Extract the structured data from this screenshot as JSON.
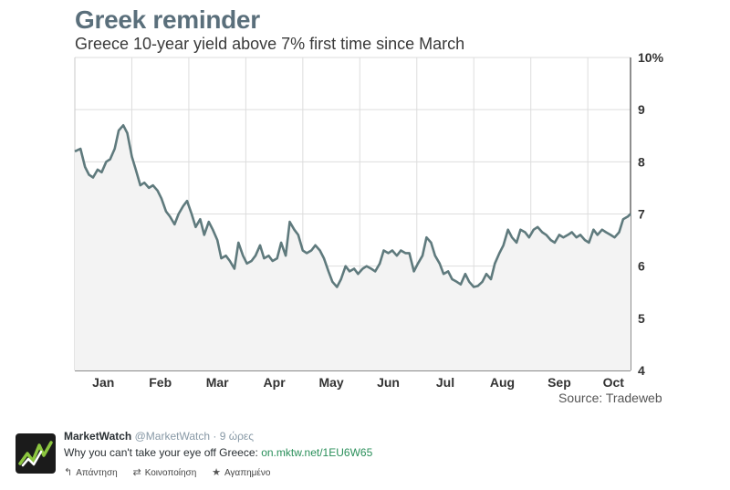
{
  "chart": {
    "title": "Greek reminder",
    "subtitle": "Greece 10-year yield above 7% first time since March",
    "source": "Source: Tradeweb"
  },
  "chart_data": {
    "type": "area",
    "title": "Greek reminder",
    "subtitle": "Greece 10-year yield above 7% first time since March",
    "ylim": [
      4,
      10
    ],
    "y_ticks": [
      "4",
      "5",
      "6",
      "7",
      "8",
      "9",
      "10%"
    ],
    "x_ticks": [
      "Jan",
      "Feb",
      "Mar",
      "Apr",
      "May",
      "Jun",
      "Jul",
      "Aug",
      "Sep",
      "Oct"
    ],
    "x_range_months": [
      0,
      9.75
    ],
    "grid": true,
    "series": [
      {
        "x": [
          0.0,
          0.1,
          0.18,
          0.25,
          0.32,
          0.4,
          0.47,
          0.55,
          0.62,
          0.7,
          0.77,
          0.85,
          0.92,
          1.0,
          1.07,
          1.15,
          1.22,
          1.3,
          1.37,
          1.45,
          1.52,
          1.6,
          1.67,
          1.75,
          1.82,
          1.9,
          1.97,
          2.05,
          2.12,
          2.2,
          2.27,
          2.35,
          2.42,
          2.5,
          2.57,
          2.65,
          2.72,
          2.8,
          2.87,
          2.95,
          3.02,
          3.1,
          3.17,
          3.25,
          3.32,
          3.4,
          3.47,
          3.55,
          3.62,
          3.7,
          3.77,
          3.85,
          3.92,
          4.0,
          4.07,
          4.15,
          4.22,
          4.3,
          4.37,
          4.45,
          4.52,
          4.6,
          4.67,
          4.75,
          4.82,
          4.9,
          4.97,
          5.05,
          5.12,
          5.2,
          5.27,
          5.35,
          5.42,
          5.5,
          5.57,
          5.65,
          5.72,
          5.8,
          5.87,
          5.95,
          6.02,
          6.1,
          6.17,
          6.25,
          6.32,
          6.4,
          6.47,
          6.55,
          6.62,
          6.7,
          6.77,
          6.85,
          6.92,
          7.0,
          7.07,
          7.15,
          7.22,
          7.3,
          7.37,
          7.45,
          7.52,
          7.6,
          7.67,
          7.75,
          7.82,
          7.9,
          7.97,
          8.05,
          8.12,
          8.2,
          8.27,
          8.35,
          8.42,
          8.5,
          8.57,
          8.65,
          8.72,
          8.8,
          8.87,
          8.95,
          9.02,
          9.1,
          9.17,
          9.25,
          9.32,
          9.4,
          9.47,
          9.55,
          9.62,
          9.7,
          9.75
        ],
        "values": [
          8.2,
          8.25,
          7.9,
          7.75,
          7.7,
          7.85,
          7.8,
          8.0,
          8.05,
          8.25,
          8.6,
          8.7,
          8.55,
          8.1,
          7.85,
          7.55,
          7.6,
          7.5,
          7.55,
          7.45,
          7.3,
          7.05,
          6.95,
          6.8,
          7.0,
          7.15,
          7.25,
          7.0,
          6.75,
          6.9,
          6.6,
          6.85,
          6.7,
          6.5,
          6.15,
          6.2,
          6.1,
          5.95,
          6.45,
          6.2,
          6.05,
          6.1,
          6.2,
          6.4,
          6.15,
          6.2,
          6.1,
          6.15,
          6.45,
          6.2,
          6.85,
          6.7,
          6.6,
          6.3,
          6.25,
          6.3,
          6.4,
          6.3,
          6.15,
          5.9,
          5.7,
          5.6,
          5.75,
          6.0,
          5.9,
          5.95,
          5.85,
          5.95,
          6.0,
          5.95,
          5.9,
          6.05,
          6.3,
          6.25,
          6.3,
          6.2,
          6.3,
          6.25,
          6.25,
          5.9,
          6.05,
          6.2,
          6.55,
          6.45,
          6.2,
          6.05,
          5.85,
          5.9,
          5.75,
          5.7,
          5.65,
          5.85,
          5.7,
          5.6,
          5.62,
          5.7,
          5.85,
          5.75,
          6.05,
          6.25,
          6.4,
          6.7,
          6.55,
          6.45,
          6.7,
          6.65,
          6.55,
          6.7,
          6.75,
          6.65,
          6.6,
          6.5,
          6.45,
          6.6,
          6.55,
          6.6,
          6.65,
          6.55,
          6.6,
          6.5,
          6.45,
          6.7,
          6.6,
          6.7,
          6.65,
          6.6,
          6.55,
          6.65,
          6.9,
          6.95,
          7.0
        ]
      }
    ]
  },
  "tweet": {
    "author": "MarketWatch",
    "handle": "@MarketWatch",
    "separator": "·",
    "time": "9 ώρες",
    "text": "Why you can't take your eye off Greece:",
    "link": "on.mktw.net/1EU6W65",
    "actions": [
      {
        "label": "Απάντηση",
        "icon": "reply-icon"
      },
      {
        "label": "Κοινοποίηση",
        "icon": "retweet-icon"
      },
      {
        "label": "Αγαπημένο",
        "icon": "star-icon"
      }
    ]
  },
  "colors": {
    "line": "#5f7a7d",
    "area": "#f3f3f3",
    "grid": "#dddddd",
    "title": "#5a6f7b",
    "link": "#2a8f5a"
  }
}
